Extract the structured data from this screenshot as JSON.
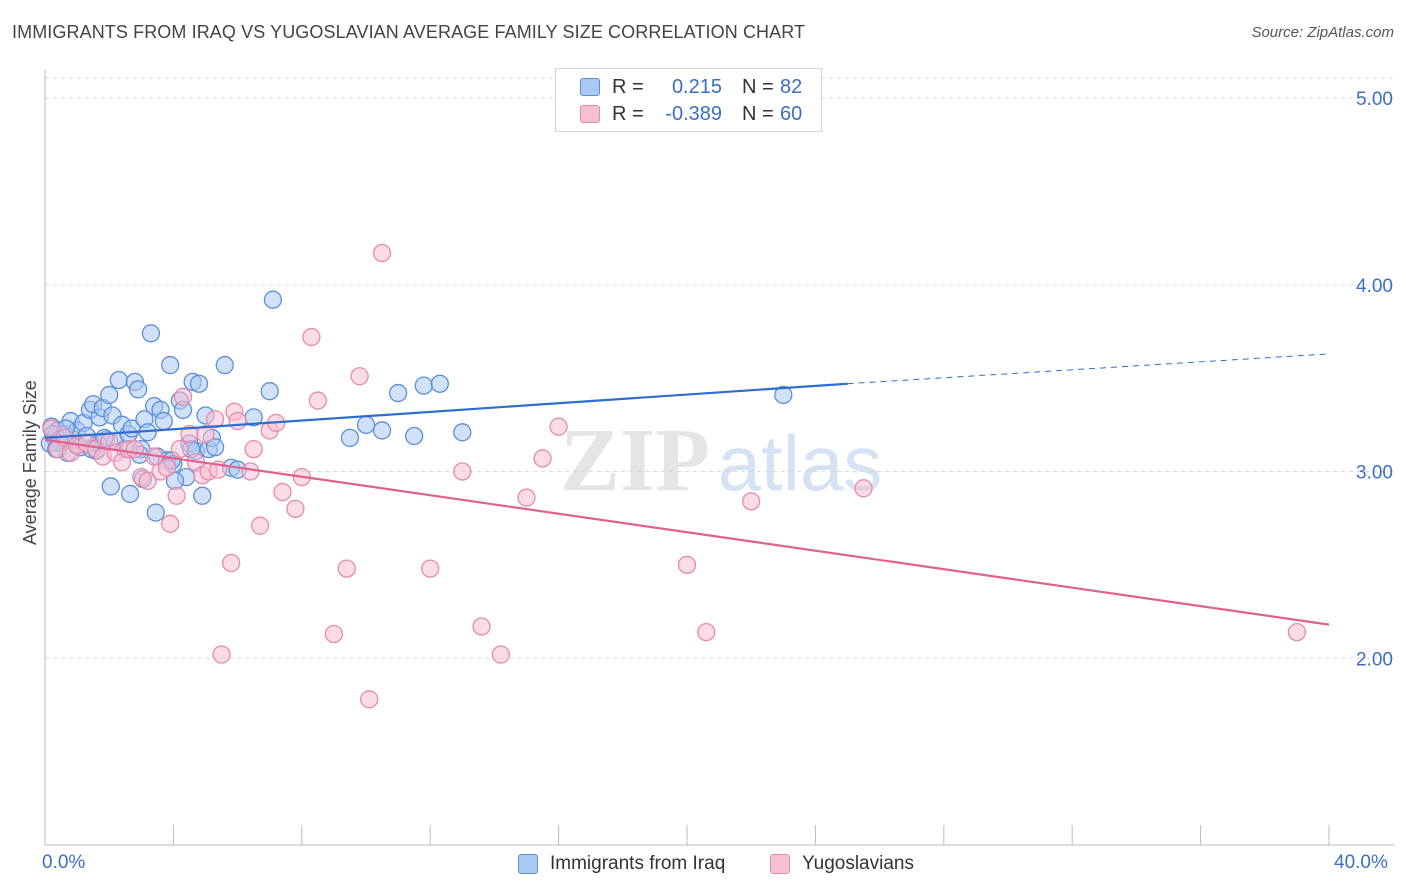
{
  "header": {
    "title": "IMMIGRANTS FROM IRAQ VS YUGOSLAVIAN AVERAGE FAMILY SIZE CORRELATION CHART",
    "source": "Source: ZipAtlas.com"
  },
  "legend_top": {
    "rows": [
      {
        "r_label": "R =",
        "r_value": "0.215",
        "n_label": "N =",
        "n_value": "82"
      },
      {
        "r_label": "R =",
        "r_value": "-0.389",
        "n_label": "N =",
        "n_value": "60"
      }
    ]
  },
  "colors": {
    "blue_fill": "#a9c8f2",
    "blue_stroke": "#5a8fd8",
    "blue_line": "#2f6ecb",
    "pink_fill": "#f6bfd2",
    "pink_stroke": "#e88aab",
    "pink_line": "#e0608e",
    "tick_text": "#3b6fc4",
    "grid": "#dcdcdc"
  },
  "chart_data": {
    "type": "scatter",
    "title": "IMMIGRANTS FROM IRAQ VS YUGOSLAVIAN AVERAGE FAMILY SIZE CORRELATION CHART",
    "xlabel": "",
    "ylabel": "Average Family Size",
    "xlim": [
      0,
      40
    ],
    "ylim": [
      1.0,
      5.15
    ],
    "x_tick_labels": [
      "0.0%",
      "40.0%"
    ],
    "y_ticks": [
      2.0,
      3.0,
      4.0,
      5.0
    ],
    "y_tick_labels": [
      "2.00",
      "3.00",
      "4.00",
      "5.00"
    ],
    "grid": true,
    "legend_position": "bottom-center",
    "series": [
      {
        "name": "Immigrants from Iraq",
        "r": 0.215,
        "n": 82,
        "trend": {
          "x": [
            0,
            25
          ],
          "y": [
            3.18,
            3.47
          ],
          "dashed_extension_to": [
            40,
            3.63
          ]
        },
        "points": [
          [
            0.2,
            3.24
          ],
          [
            0.3,
            3.18
          ],
          [
            0.4,
            3.22
          ],
          [
            0.5,
            3.15
          ],
          [
            0.6,
            3.2
          ],
          [
            0.7,
            3.1
          ],
          [
            0.8,
            3.27
          ],
          [
            0.9,
            3.17
          ],
          [
            1.0,
            3.22
          ],
          [
            1.1,
            3.13
          ],
          [
            1.2,
            3.26
          ],
          [
            1.3,
            3.19
          ],
          [
            1.4,
            3.33
          ],
          [
            1.5,
            3.36
          ],
          [
            1.6,
            3.11
          ],
          [
            1.7,
            3.29
          ],
          [
            1.8,
            3.34
          ],
          [
            1.9,
            3.17
          ],
          [
            2.0,
            3.41
          ],
          [
            2.1,
            3.3
          ],
          [
            2.2,
            3.16
          ],
          [
            2.3,
            3.49
          ],
          [
            2.4,
            3.25
          ],
          [
            2.5,
            3.12
          ],
          [
            2.6,
            3.2
          ],
          [
            2.7,
            3.23
          ],
          [
            2.8,
            3.48
          ],
          [
            2.9,
            3.44
          ],
          [
            3.0,
            3.12
          ],
          [
            3.1,
            3.28
          ],
          [
            3.2,
            3.21
          ],
          [
            3.3,
            3.74
          ],
          [
            3.4,
            3.35
          ],
          [
            3.5,
            3.08
          ],
          [
            3.6,
            3.33
          ],
          [
            3.7,
            3.27
          ],
          [
            3.8,
            3.06
          ],
          [
            3.9,
            3.57
          ],
          [
            4.0,
            3.04
          ],
          [
            4.2,
            3.38
          ],
          [
            4.3,
            3.33
          ],
          [
            4.4,
            2.97
          ],
          [
            4.5,
            3.15
          ],
          [
            4.6,
            3.48
          ],
          [
            4.7,
            3.11
          ],
          [
            4.8,
            3.47
          ],
          [
            4.9,
            2.87
          ],
          [
            5.0,
            3.3
          ],
          [
            5.1,
            3.12
          ],
          [
            5.2,
            3.18
          ],
          [
            5.3,
            3.13
          ],
          [
            5.6,
            3.57
          ],
          [
            5.8,
            3.02
          ],
          [
            6.0,
            3.01
          ],
          [
            6.5,
            3.29
          ],
          [
            7.0,
            3.43
          ],
          [
            7.1,
            3.92
          ],
          [
            9.5,
            3.18
          ],
          [
            10.0,
            3.25
          ],
          [
            10.5,
            3.22
          ],
          [
            11.0,
            3.42
          ],
          [
            11.5,
            3.19
          ],
          [
            11.8,
            3.46
          ],
          [
            12.3,
            3.47
          ],
          [
            13.0,
            3.21
          ],
          [
            23.0,
            3.41
          ],
          [
            0.25,
            3.2
          ],
          [
            0.45,
            3.17
          ],
          [
            0.65,
            3.23
          ],
          [
            1.65,
            3.15
          ],
          [
            2.05,
            2.92
          ],
          [
            2.65,
            2.88
          ],
          [
            2.95,
            3.09
          ],
          [
            3.05,
            2.96
          ],
          [
            3.45,
            2.78
          ],
          [
            3.95,
            3.06
          ],
          [
            4.05,
            2.95
          ],
          [
            4.55,
            3.12
          ],
          [
            1.45,
            3.12
          ],
          [
            0.15,
            3.15
          ],
          [
            0.35,
            3.12
          ],
          [
            1.85,
            3.18
          ]
        ]
      },
      {
        "name": "Yugoslavians",
        "r": -0.389,
        "n": 60,
        "trend": {
          "x": [
            0,
            40
          ],
          "y": [
            3.17,
            2.18
          ]
        },
        "points": [
          [
            0.2,
            3.23
          ],
          [
            0.4,
            3.12
          ],
          [
            0.6,
            3.18
          ],
          [
            0.8,
            3.1
          ],
          [
            1.0,
            3.14
          ],
          [
            1.3,
            3.15
          ],
          [
            1.6,
            3.12
          ],
          [
            1.8,
            3.08
          ],
          [
            2.0,
            3.16
          ],
          [
            2.2,
            3.1
          ],
          [
            2.4,
            3.05
          ],
          [
            2.6,
            3.12
          ],
          [
            2.8,
            3.12
          ],
          [
            3.0,
            2.97
          ],
          [
            3.2,
            2.95
          ],
          [
            3.4,
            3.08
          ],
          [
            3.6,
            3.0
          ],
          [
            3.8,
            3.02
          ],
          [
            3.9,
            2.72
          ],
          [
            4.1,
            2.87
          ],
          [
            4.2,
            3.12
          ],
          [
            4.3,
            3.4
          ],
          [
            4.5,
            3.2
          ],
          [
            4.7,
            3.05
          ],
          [
            4.9,
            2.98
          ],
          [
            5.0,
            3.2
          ],
          [
            5.1,
            3.0
          ],
          [
            5.3,
            3.28
          ],
          [
            5.4,
            3.01
          ],
          [
            5.5,
            2.02
          ],
          [
            5.8,
            2.51
          ],
          [
            5.9,
            3.32
          ],
          [
            6.0,
            3.27
          ],
          [
            6.4,
            3.0
          ],
          [
            6.5,
            3.12
          ],
          [
            6.7,
            2.71
          ],
          [
            7.0,
            3.22
          ],
          [
            7.2,
            3.26
          ],
          [
            7.4,
            2.89
          ],
          [
            7.8,
            2.8
          ],
          [
            8.0,
            2.97
          ],
          [
            8.3,
            3.72
          ],
          [
            8.5,
            3.38
          ],
          [
            9.0,
            2.13
          ],
          [
            9.4,
            2.48
          ],
          [
            9.8,
            3.51
          ],
          [
            10.1,
            1.78
          ],
          [
            10.5,
            4.17
          ],
          [
            12.0,
            2.48
          ],
          [
            13.0,
            3.0
          ],
          [
            13.6,
            2.17
          ],
          [
            14.2,
            2.02
          ],
          [
            15.0,
            2.86
          ],
          [
            15.5,
            3.07
          ],
          [
            16.0,
            3.24
          ],
          [
            20.0,
            2.5
          ],
          [
            20.6,
            2.14
          ],
          [
            22.0,
            2.84
          ],
          [
            25.5,
            2.91
          ],
          [
            39.0,
            2.14
          ]
        ]
      }
    ]
  }
}
